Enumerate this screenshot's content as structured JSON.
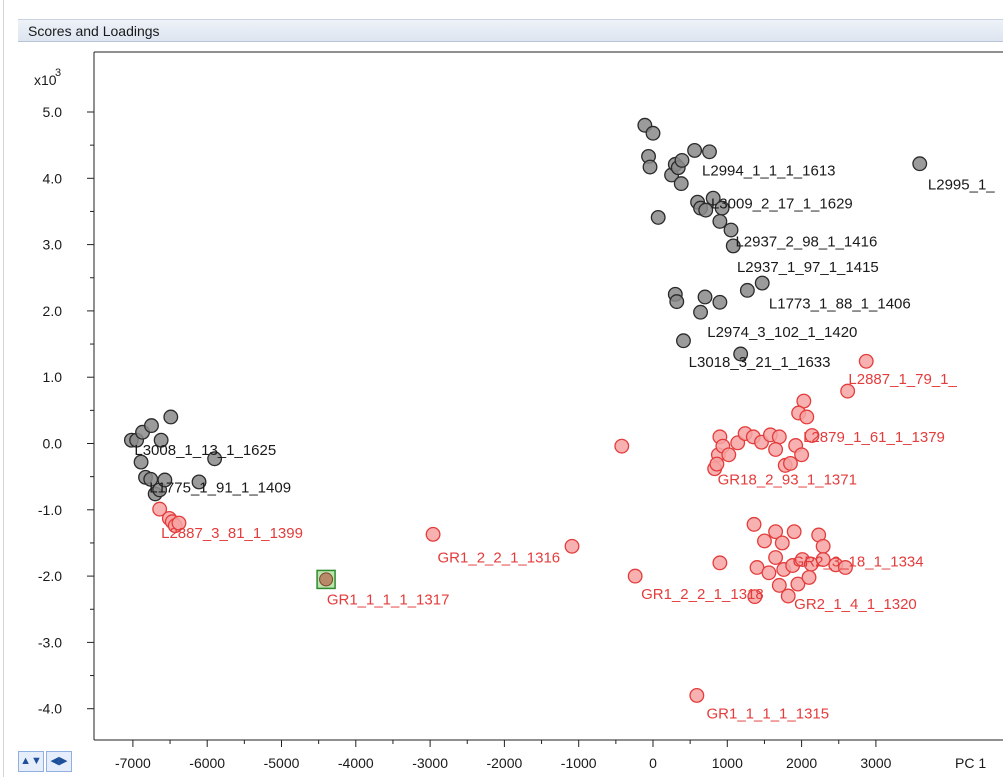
{
  "window": {
    "panel_title": "Scores and Loadings",
    "colors": {
      "panel_bg": "#dde5f0",
      "accent": "#3a7bd5"
    }
  },
  "chart_data": {
    "type": "scatter",
    "title": "",
    "xlabel": "PC 1",
    "ylabel": "",
    "y_multiplier": "x10",
    "y_multiplier_exponent": "3",
    "xlim": [
      -7400,
      3350
    ],
    "ylim": [
      -4.3,
      5.3
    ],
    "x_ticks": [
      -7000,
      -6000,
      -5000,
      -4000,
      -3000,
      -2000,
      -1000,
      0,
      1000,
      2000,
      3000
    ],
    "y_ticks": [
      5.0,
      4.0,
      3.0,
      2.0,
      1.0,
      0.0,
      -1.0,
      -2.0,
      -3.0,
      -4.0
    ],
    "y_tick_labels": [
      "5.0",
      "4.0",
      "3.0",
      "2.0",
      "1.0",
      "0.0",
      "-1.0",
      "-2.0",
      "-3.0",
      "-4.0"
    ],
    "grid": false,
    "series": [
      {
        "color": "#7a7a7a",
        "points": [
          {
            "x": -7020,
            "y": 0.05
          },
          {
            "x": -6950,
            "y": 0.05
          },
          {
            "x": -6870,
            "y": 0.17
          },
          {
            "x": -6750,
            "y": 0.27
          },
          {
            "x": -6620,
            "y": 0.05
          },
          {
            "x": -6490,
            "y": 0.4
          },
          {
            "x": -6890,
            "y": -0.28
          },
          {
            "x": -6830,
            "y": -0.51
          },
          {
            "x": -6760,
            "y": -0.54
          },
          {
            "x": -6700,
            "y": -0.76
          },
          {
            "x": -6640,
            "y": -0.7
          },
          {
            "x": -6570,
            "y": -0.55
          },
          {
            "x": -6110,
            "y": -0.58
          },
          {
            "x": -5900,
            "y": -0.23
          },
          {
            "x": -110,
            "y": 4.8
          },
          {
            "x": 0,
            "y": 4.68
          },
          {
            "x": -60,
            "y": 4.33
          },
          {
            "x": -40,
            "y": 4.17
          },
          {
            "x": 250,
            "y": 4.05
          },
          {
            "x": 300,
            "y": 4.21
          },
          {
            "x": 340,
            "y": 4.16
          },
          {
            "x": 390,
            "y": 4.27
          },
          {
            "x": 380,
            "y": 3.92
          },
          {
            "x": 560,
            "y": 4.42
          },
          {
            "x": 760,
            "y": 4.4
          },
          {
            "x": 600,
            "y": 3.64
          },
          {
            "x": 640,
            "y": 3.55
          },
          {
            "x": 710,
            "y": 3.52
          },
          {
            "x": 810,
            "y": 3.7
          },
          {
            "x": 930,
            "y": 3.55
          },
          {
            "x": 70,
            "y": 3.41
          },
          {
            "x": 900,
            "y": 3.35
          },
          {
            "x": 1050,
            "y": 3.22
          },
          {
            "x": 1080,
            "y": 2.98
          },
          {
            "x": 300,
            "y": 2.25
          },
          {
            "x": 320,
            "y": 2.14
          },
          {
            "x": 640,
            "y": 1.98
          },
          {
            "x": 700,
            "y": 2.21
          },
          {
            "x": 900,
            "y": 2.13
          },
          {
            "x": 1270,
            "y": 2.31
          },
          {
            "x": 1470,
            "y": 2.42
          },
          {
            "x": 410,
            "y": 1.55
          },
          {
            "x": 1180,
            "y": 1.35
          },
          {
            "x": 3590,
            "y": 4.22
          }
        ],
        "labels": [
          {
            "x": 660,
            "y": 4.12,
            "text": "L2994_1_1_1_1613"
          },
          {
            "x": 780,
            "y": 3.62,
            "text": "L3009_2_17_1_1629"
          },
          {
            "x": 1110,
            "y": 3.05,
            "text": "L2937_2_98_1_1416"
          },
          {
            "x": 1130,
            "y": 2.66,
            "text": "L2937_1_97_1_1415"
          },
          {
            "x": 1560,
            "y": 2.11,
            "text": "L1773_1_88_1_1406"
          },
          {
            "x": 730,
            "y": 1.68,
            "text": "L2974_3_102_1_1420"
          },
          {
            "x": 480,
            "y": 1.23,
            "text": "L3018_3_21_1_1633"
          },
          {
            "x": -6980,
            "y": -0.1,
            "text": "L3008_1_13_1_1625"
          },
          {
            "x": -6780,
            "y": -0.66,
            "text": "L1775_1_91_1_1409"
          },
          {
            "x": 3700,
            "y": 3.91,
            "text": "L2995_1_"
          }
        ]
      },
      {
        "color": "#e43c3c",
        "points": [
          {
            "x": -6640,
            "y": -0.99
          },
          {
            "x": -6510,
            "y": -1.13
          },
          {
            "x": -6470,
            "y": -1.18
          },
          {
            "x": -6430,
            "y": -1.24
          },
          {
            "x": -6380,
            "y": -1.2
          },
          {
            "x": -2960,
            "y": -1.37
          },
          {
            "x": -1090,
            "y": -1.55
          },
          {
            "x": -420,
            "y": -0.04
          },
          {
            "x": -240,
            "y": -2.0
          },
          {
            "x": 590,
            "y": -3.8
          },
          {
            "x": 2870,
            "y": 1.24
          },
          {
            "x": 2620,
            "y": 0.79
          },
          {
            "x": 2030,
            "y": 0.64
          },
          {
            "x": 1960,
            "y": 0.46
          },
          {
            "x": 2070,
            "y": 0.4
          },
          {
            "x": 2140,
            "y": 0.12
          },
          {
            "x": 900,
            "y": 0.1
          },
          {
            "x": 880,
            "y": -0.17
          },
          {
            "x": 940,
            "y": -0.04
          },
          {
            "x": 1020,
            "y": -0.17
          },
          {
            "x": 830,
            "y": -0.38
          },
          {
            "x": 860,
            "y": -0.31
          },
          {
            "x": 1140,
            "y": 0.01
          },
          {
            "x": 1240,
            "y": 0.15
          },
          {
            "x": 1350,
            "y": 0.1
          },
          {
            "x": 1460,
            "y": 0.02
          },
          {
            "x": 1580,
            "y": 0.13
          },
          {
            "x": 1700,
            "y": 0.1
          },
          {
            "x": 1650,
            "y": -0.09
          },
          {
            "x": 1780,
            "y": -0.33
          },
          {
            "x": 1850,
            "y": -0.3
          },
          {
            "x": 1920,
            "y": -0.03
          },
          {
            "x": 2000,
            "y": -0.17
          },
          {
            "x": 1360,
            "y": -1.22
          },
          {
            "x": 1500,
            "y": -1.47
          },
          {
            "x": 1650,
            "y": -1.33
          },
          {
            "x": 1740,
            "y": -1.5
          },
          {
            "x": 1900,
            "y": -1.33
          },
          {
            "x": 2230,
            "y": -1.38
          },
          {
            "x": 2290,
            "y": -1.55
          },
          {
            "x": 1400,
            "y": -1.87
          },
          {
            "x": 1560,
            "y": -1.95
          },
          {
            "x": 1650,
            "y": -1.72
          },
          {
            "x": 1760,
            "y": -1.9
          },
          {
            "x": 1880,
            "y": -1.84
          },
          {
            "x": 2010,
            "y": -1.75
          },
          {
            "x": 2130,
            "y": -1.82
          },
          {
            "x": 2290,
            "y": -1.75
          },
          {
            "x": 2460,
            "y": -1.83
          },
          {
            "x": 1700,
            "y": -2.14
          },
          {
            "x": 1820,
            "y": -2.3
          },
          {
            "x": 1950,
            "y": -2.12
          },
          {
            "x": 2100,
            "y": -2.02
          },
          {
            "x": 900,
            "y": -1.8
          },
          {
            "x": 1370,
            "y": -2.31
          },
          {
            "x": 2590,
            "y": -1.87
          }
        ],
        "labels": [
          {
            "x": 2630,
            "y": 0.97,
            "text": "L2887_1_79_1_"
          },
          {
            "x": 2020,
            "y": 0.1,
            "text": "L2879_1_61_1_1379"
          },
          {
            "x": 870,
            "y": -0.54,
            "text": "GR18_2_93_1_1371"
          },
          {
            "x": -6620,
            "y": -1.35,
            "text": "L2887_3_81_1_1399"
          },
          {
            "x": -2900,
            "y": -1.72,
            "text": "GR1_2_2_1_1316"
          },
          {
            "x": -160,
            "y": -2.27,
            "text": "GR1_2_2_1_1318"
          },
          {
            "x": 1880,
            "y": -1.78,
            "text": "GR2_3_18_1_1334"
          },
          {
            "x": 1900,
            "y": -2.42,
            "text": "GR2_1_4_1_1320"
          },
          {
            "x": 720,
            "y": -4.07,
            "text": "GR1_1_1_1_1315"
          },
          {
            "x": -4390,
            "y": -2.35,
            "text": "GR1_1_1_1_1317"
          }
        ]
      }
    ],
    "selected_point": {
      "x": -4400,
      "y": -2.05,
      "color": "#2e8b2e"
    }
  },
  "toolbar": {
    "icons": [
      "vertical-arrows-icon",
      "horizontal-arrows-icon"
    ],
    "glyph_vertical": "▲▼",
    "glyph_horizontal": "◀▶"
  }
}
